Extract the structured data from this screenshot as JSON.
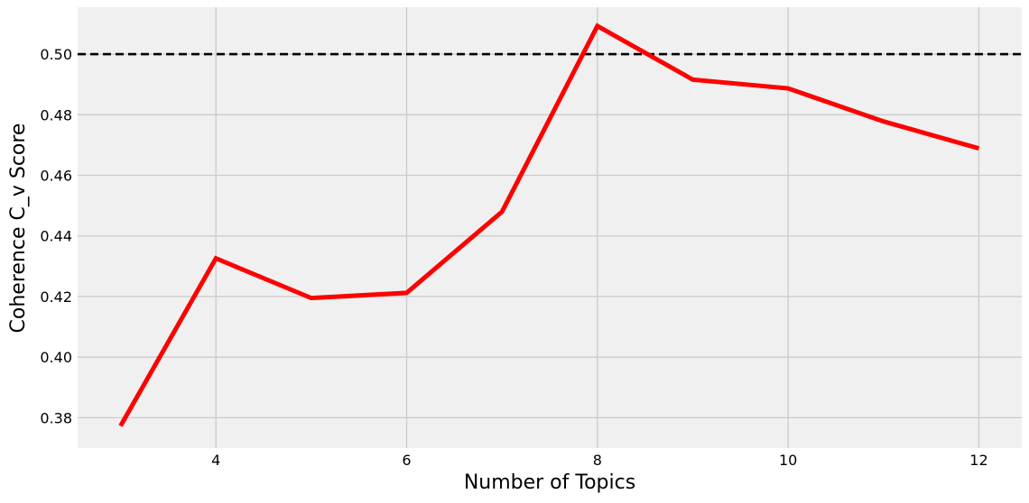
{
  "chart_data": {
    "type": "line",
    "title": "",
    "xlabel": "Number of Topics",
    "ylabel": "Coherence C_v Score",
    "x": [
      3,
      4,
      5,
      6,
      7,
      8,
      9,
      10,
      11,
      12
    ],
    "series": [
      {
        "values": [
          0.3773,
          0.4326,
          0.4195,
          0.4212,
          0.448,
          0.5093,
          0.4916,
          0.4887,
          0.4778,
          0.4689
        ],
        "color": "#ff0000"
      }
    ],
    "reference_line": {
      "y": 0.5,
      "style": "dashed",
      "color": "#000000"
    },
    "xlim": [
      2.55,
      12.45
    ],
    "ylim": [
      0.37,
      0.5155
    ],
    "xticks": [
      "4",
      "6",
      "8",
      "10",
      "12"
    ],
    "yticks": [
      "0.38",
      "0.40",
      "0.42",
      "0.44",
      "0.46",
      "0.48",
      "0.50"
    ],
    "grid": true,
    "legend": "none",
    "colors": {
      "plot_background": "#f0f0f0",
      "grid": "#cbcbcb",
      "line": "#ff0000"
    }
  }
}
